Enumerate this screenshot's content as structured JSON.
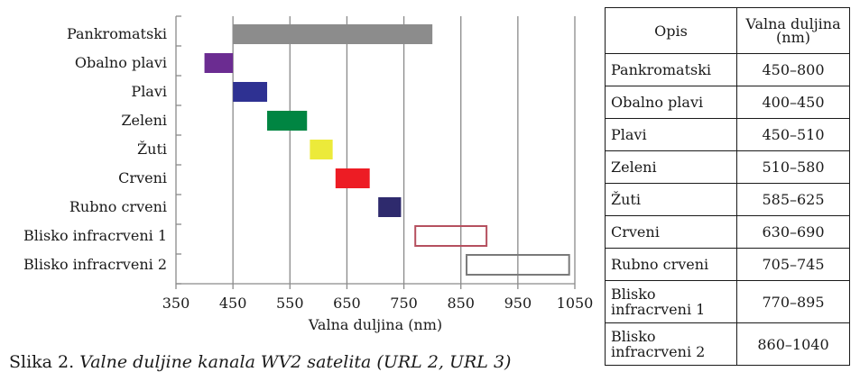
{
  "chart_data": {
    "type": "bar",
    "orientation": "horizontal-range",
    "xlabel": "Valna duljina (nm)",
    "xlim": [
      350,
      1050
    ],
    "xticks": [
      "350",
      "450",
      "550",
      "650",
      "750",
      "850",
      "950",
      "1050"
    ],
    "grid": true,
    "categories": [
      "Pankromatski",
      "Obalno plavi",
      "Plavi",
      "Zeleni",
      "Žuti",
      "Crveni",
      "Rubno crveni",
      "Blisko infracrveni 1",
      "Blisko infracrveni 2"
    ],
    "ranges": [
      [
        450,
        800
      ],
      [
        400,
        450
      ],
      [
        450,
        510
      ],
      [
        510,
        580
      ],
      [
        585,
        625
      ],
      [
        630,
        690
      ],
      [
        705,
        745
      ],
      [
        770,
        895
      ],
      [
        860,
        1040
      ]
    ],
    "colors": [
      "#8c8c8c",
      "#6b2c91",
      "#2e3192",
      "#008542",
      "#ecea3a",
      "#ed1c24",
      "#2e2a6d",
      "none",
      "none"
    ],
    "outline_colors": [
      "",
      "",
      "",
      "",
      "",
      "",
      "",
      "#b5505f",
      "#7a7a7a"
    ]
  },
  "caption": {
    "prefix": "Slika 2. ",
    "italic": "Valne duljine kanala WV2 satelita (URL 2, URL 3)"
  },
  "table": {
    "headers": [
      "Opis",
      "Valna duljina (nm)"
    ],
    "rows": [
      [
        "Pankromatski",
        "450–800"
      ],
      [
        "Obalno plavi",
        "400–450"
      ],
      [
        "Plavi",
        "450–510"
      ],
      [
        "Zeleni",
        "510–580"
      ],
      [
        "Žuti",
        "585–625"
      ],
      [
        "Crveni",
        "630–690"
      ],
      [
        "Rubno crveni",
        "705–745"
      ],
      [
        "Blisko infracrveni 1",
        "770–895"
      ],
      [
        "Blisko infracrveni 2",
        "860–1040"
      ]
    ]
  }
}
